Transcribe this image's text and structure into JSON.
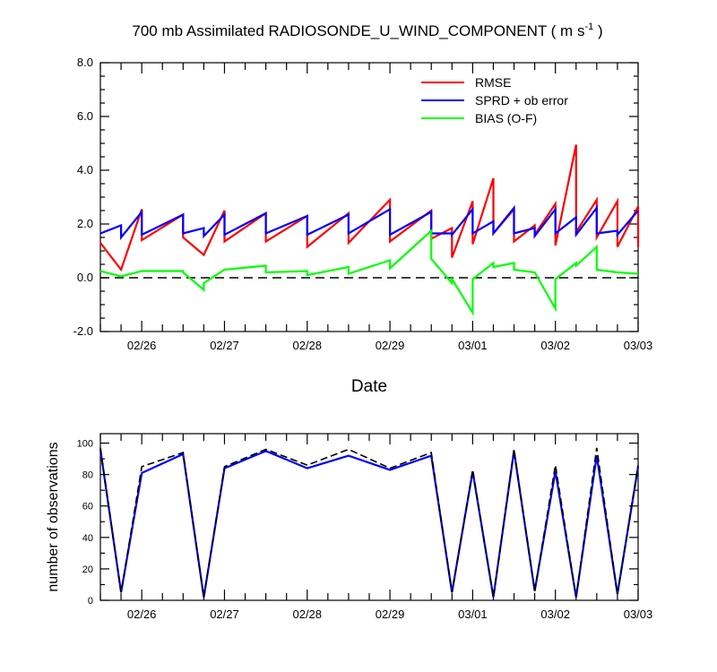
{
  "chart_data": [
    {
      "type": "line",
      "title_main": "700 mb Assimilated RADIOSONDE_U_WIND_COMPONENT ( m s",
      "title_sup": "-1",
      "title_end": " )",
      "xlabel": "Date",
      "ylabel": "",
      "xlim": [
        0,
        6.5
      ],
      "ylim": [
        -2,
        8
      ],
      "x_tick_labels": [
        "02/26",
        "02/27",
        "02/28",
        "02/29",
        "03/01",
        "03/02",
        "03/03"
      ],
      "x_tick_positions": [
        0.5,
        1.5,
        2.5,
        3.5,
        4.5,
        5.5,
        6.5
      ],
      "y_tick_labels": [
        "-2.0",
        "0.0",
        "2.0",
        "4.0",
        "6.0",
        "8.0"
      ],
      "y_tick_values": [
        -2,
        0,
        2,
        4,
        6,
        8
      ],
      "reference_line": 0,
      "legend_position": "top-right",
      "series": [
        {
          "name": "RMSE",
          "color": "#ff0000",
          "points": [
            [
              0,
              1.3
            ],
            [
              0.25,
              0.3
            ],
            [
              0.25,
              0.3
            ],
            [
              0.5,
              2.55
            ],
            [
              0.5,
              1.4
            ],
            [
              1.0,
              2.35
            ],
            [
              1.0,
              1.5
            ],
            [
              1.25,
              0.85
            ],
            [
              1.25,
              0.85
            ],
            [
              1.5,
              2.5
            ],
            [
              1.5,
              1.35
            ],
            [
              2.0,
              2.4
            ],
            [
              2.0,
              1.35
            ],
            [
              2.5,
              2.3
            ],
            [
              2.5,
              1.15
            ],
            [
              3.0,
              2.4
            ],
            [
              3.0,
              1.3
            ],
            [
              3.5,
              2.9
            ],
            [
              3.5,
              1.35
            ],
            [
              4.0,
              2.5
            ],
            [
              4.0,
              1.45
            ],
            [
              4.25,
              1.85
            ],
            [
              4.25,
              0.75
            ],
            [
              4.5,
              2.85
            ],
            [
              4.5,
              1.25
            ],
            [
              4.75,
              3.7
            ],
            [
              4.75,
              1.65
            ],
            [
              5.0,
              2.55
            ],
            [
              5.0,
              1.35
            ],
            [
              5.25,
              1.95
            ],
            [
              5.25,
              1.6
            ],
            [
              5.5,
              2.75
            ],
            [
              5.5,
              1.2
            ],
            [
              5.75,
              4.95
            ],
            [
              5.75,
              1.7
            ],
            [
              6.0,
              2.9
            ],
            [
              6.0,
              1.5
            ],
            [
              6.25,
              2.85
            ],
            [
              6.25,
              1.15
            ],
            [
              6.5,
              2.65
            ],
            [
              6.5,
              1.15
            ]
          ]
        },
        {
          "name": "SPRD + ob error",
          "color": "#0000ff",
          "points": [
            [
              0,
              1.65
            ],
            [
              0.25,
              1.95
            ],
            [
              0.25,
              1.5
            ],
            [
              0.5,
              2.45
            ],
            [
              0.5,
              1.6
            ],
            [
              1.0,
              2.35
            ],
            [
              1.0,
              1.65
            ],
            [
              1.25,
              1.85
            ],
            [
              1.25,
              1.55
            ],
            [
              1.5,
              2.35
            ],
            [
              1.5,
              1.6
            ],
            [
              2.0,
              2.4
            ],
            [
              2.0,
              1.65
            ],
            [
              2.5,
              2.3
            ],
            [
              2.5,
              1.6
            ],
            [
              3.0,
              2.35
            ],
            [
              3.0,
              1.65
            ],
            [
              3.5,
              2.55
            ],
            [
              3.5,
              1.6
            ],
            [
              4.0,
              2.45
            ],
            [
              4.0,
              1.65
            ],
            [
              4.25,
              1.65
            ],
            [
              4.25,
              1.6
            ],
            [
              4.5,
              2.55
            ],
            [
              4.5,
              1.65
            ],
            [
              4.75,
              2.1
            ],
            [
              4.75,
              1.65
            ],
            [
              5.0,
              2.6
            ],
            [
              5.0,
              1.65
            ],
            [
              5.25,
              1.85
            ],
            [
              5.25,
              1.55
            ],
            [
              5.5,
              2.55
            ],
            [
              5.5,
              1.65
            ],
            [
              5.75,
              2.25
            ],
            [
              5.75,
              1.6
            ],
            [
              6.0,
              2.6
            ],
            [
              6.0,
              1.65
            ],
            [
              6.25,
              1.75
            ],
            [
              6.25,
              1.6
            ],
            [
              6.5,
              2.5
            ],
            [
              6.5,
              2.5
            ]
          ]
        },
        {
          "name": "BIAS (O-F)",
          "color": "#00ff00",
          "points": [
            [
              0,
              0.25
            ],
            [
              0.25,
              0.05
            ],
            [
              0.25,
              0.05
            ],
            [
              0.5,
              0.25
            ],
            [
              0.5,
              0.25
            ],
            [
              1.0,
              0.25
            ],
            [
              1.0,
              0.2
            ],
            [
              1.25,
              -0.45
            ],
            [
              1.25,
              -0.2
            ],
            [
              1.5,
              0.3
            ],
            [
              1.5,
              0.3
            ],
            [
              2.0,
              0.45
            ],
            [
              2.0,
              0.2
            ],
            [
              2.5,
              0.25
            ],
            [
              2.5,
              0.1
            ],
            [
              3.0,
              0.4
            ],
            [
              3.0,
              0.15
            ],
            [
              3.5,
              0.65
            ],
            [
              3.5,
              0.35
            ],
            [
              4.0,
              1.75
            ],
            [
              4.0,
              0.7
            ],
            [
              4.25,
              -0.2
            ],
            [
              4.25,
              -0.05
            ],
            [
              4.5,
              -1.3
            ],
            [
              4.5,
              -0.05
            ],
            [
              4.75,
              0.55
            ],
            [
              4.75,
              0.4
            ],
            [
              5.0,
              0.55
            ],
            [
              5.0,
              0.3
            ],
            [
              5.25,
              0.2
            ],
            [
              5.25,
              0.2
            ],
            [
              5.5,
              -1.15
            ],
            [
              5.5,
              -0.05
            ],
            [
              5.75,
              0.55
            ],
            [
              5.75,
              0.45
            ],
            [
              6.0,
              1.15
            ],
            [
              6.0,
              0.3
            ],
            [
              6.25,
              0.2
            ],
            [
              6.25,
              0.2
            ],
            [
              6.5,
              0.15
            ]
          ]
        }
      ]
    },
    {
      "type": "line",
      "title": "",
      "xlabel": "",
      "ylabel": "number of observations",
      "xlim": [
        0,
        6.5
      ],
      "ylim": [
        0,
        106
      ],
      "x_tick_labels": [
        "02/26",
        "02/27",
        "02/28",
        "02/29",
        "03/01",
        "03/02",
        "03/03"
      ],
      "x_tick_positions": [
        0.5,
        1.5,
        2.5,
        3.5,
        4.5,
        5.5,
        6.5
      ],
      "y_tick_labels": [
        "0",
        "20",
        "40",
        "60",
        "80",
        "100"
      ],
      "y_tick_values": [
        0,
        20,
        40,
        60,
        80,
        100
      ],
      "series": [
        {
          "name": "",
          "color": "#0000ff",
          "style": "solid",
          "points": [
            [
              0,
              96
            ],
            [
              0.25,
              5
            ],
            [
              0.5,
              81
            ],
            [
              1.0,
              93
            ],
            [
              1.25,
              2
            ],
            [
              1.5,
              84
            ],
            [
              2.0,
              95
            ],
            [
              2.5,
              84
            ],
            [
              3.0,
              92
            ],
            [
              3.5,
              83
            ],
            [
              4.0,
              92
            ],
            [
              4.25,
              5
            ],
            [
              4.5,
              82
            ],
            [
              4.75,
              2
            ],
            [
              5.0,
              95
            ],
            [
              5.25,
              6
            ],
            [
              5.5,
              82
            ],
            [
              5.75,
              2
            ],
            [
              6.0,
              92
            ],
            [
              6.25,
              4
            ],
            [
              6.5,
              85
            ]
          ]
        },
        {
          "name": "",
          "color": "#000000",
          "style": "dashed",
          "points": [
            [
              0,
              97
            ],
            [
              0.25,
              5
            ],
            [
              0.5,
              85
            ],
            [
              1.0,
              94
            ],
            [
              1.25,
              2
            ],
            [
              1.5,
              85
            ],
            [
              2.0,
              96
            ],
            [
              2.5,
              86
            ],
            [
              3.0,
              96
            ],
            [
              3.5,
              84
            ],
            [
              4.0,
              94
            ],
            [
              4.25,
              5
            ],
            [
              4.5,
              83
            ],
            [
              4.75,
              2
            ],
            [
              5.0,
              96
            ],
            [
              5.25,
              6
            ],
            [
              5.5,
              86
            ],
            [
              5.75,
              2
            ],
            [
              6.0,
              97
            ],
            [
              6.25,
              4
            ],
            [
              6.5,
              86
            ]
          ]
        }
      ]
    }
  ]
}
